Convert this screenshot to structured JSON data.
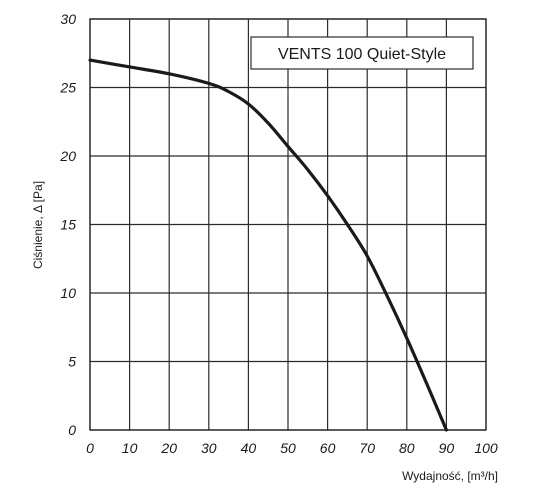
{
  "chart_data": {
    "type": "line",
    "title": "VENTS 100 Quiet-Style",
    "xlabel": "Wydajność, [m³/h]",
    "ylabel": "Ciśnienie, Δ [Pa]",
    "xlim": [
      0,
      100
    ],
    "ylim": [
      0,
      30
    ],
    "x_ticks": [
      "0",
      "10",
      "20",
      "30",
      "40",
      "50",
      "60",
      "70",
      "80",
      "90",
      "100"
    ],
    "y_ticks": [
      "0",
      "5",
      "10",
      "15",
      "20",
      "25",
      "30"
    ],
    "grid": true,
    "series": [
      {
        "x": [
          0,
          10,
          20,
          30,
          35,
          40,
          45,
          50,
          55,
          60,
          65,
          70,
          75,
          80,
          85,
          90
        ],
        "y": [
          27.0,
          26.5,
          26.0,
          25.3,
          24.7,
          23.8,
          22.4,
          20.7,
          19.0,
          17.1,
          15.0,
          12.7,
          9.8,
          6.7,
          3.4,
          0
        ]
      }
    ],
    "colors": {
      "line": "#1a1a1a",
      "grid": "#2b2b2b"
    }
  }
}
